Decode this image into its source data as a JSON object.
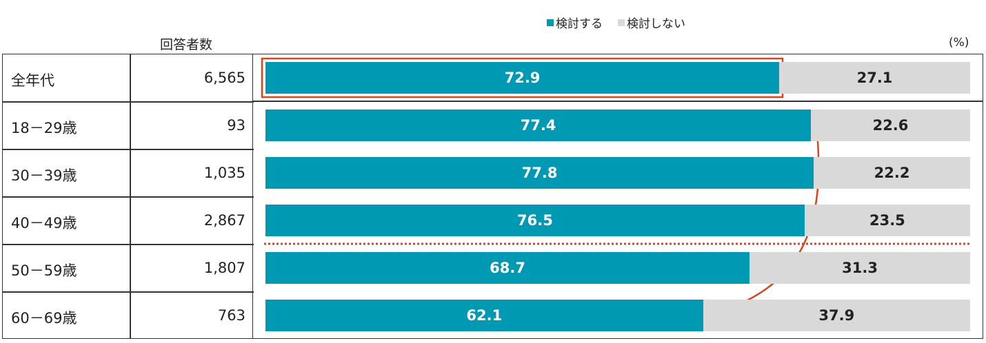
{
  "chart_data": {
    "type": "bar",
    "stacked": true,
    "orientation": "horizontal",
    "unit": "(%)",
    "legend": [
      "検討する",
      "検討しない"
    ],
    "legend_position": "top",
    "count_header": "回答者数",
    "categories": [
      "全年代",
      "18－29歳",
      "30－39歳",
      "40－49歳",
      "50－59歳",
      "60－69歳"
    ],
    "respondents": [
      "6,565",
      "93",
      "1,035",
      "2,867",
      "1,807",
      "763"
    ],
    "series": [
      {
        "name": "検討する",
        "color": "#0099b3",
        "values": [
          72.9,
          77.4,
          77.8,
          76.5,
          68.7,
          62.1
        ]
      },
      {
        "name": "検討しない",
        "color": "#d9d9d9",
        "values": [
          27.1,
          22.6,
          22.2,
          23.5,
          31.3,
          37.9
        ]
      }
    ],
    "xlim": [
      0,
      100
    ],
    "highlight_color": "#e0401a"
  }
}
